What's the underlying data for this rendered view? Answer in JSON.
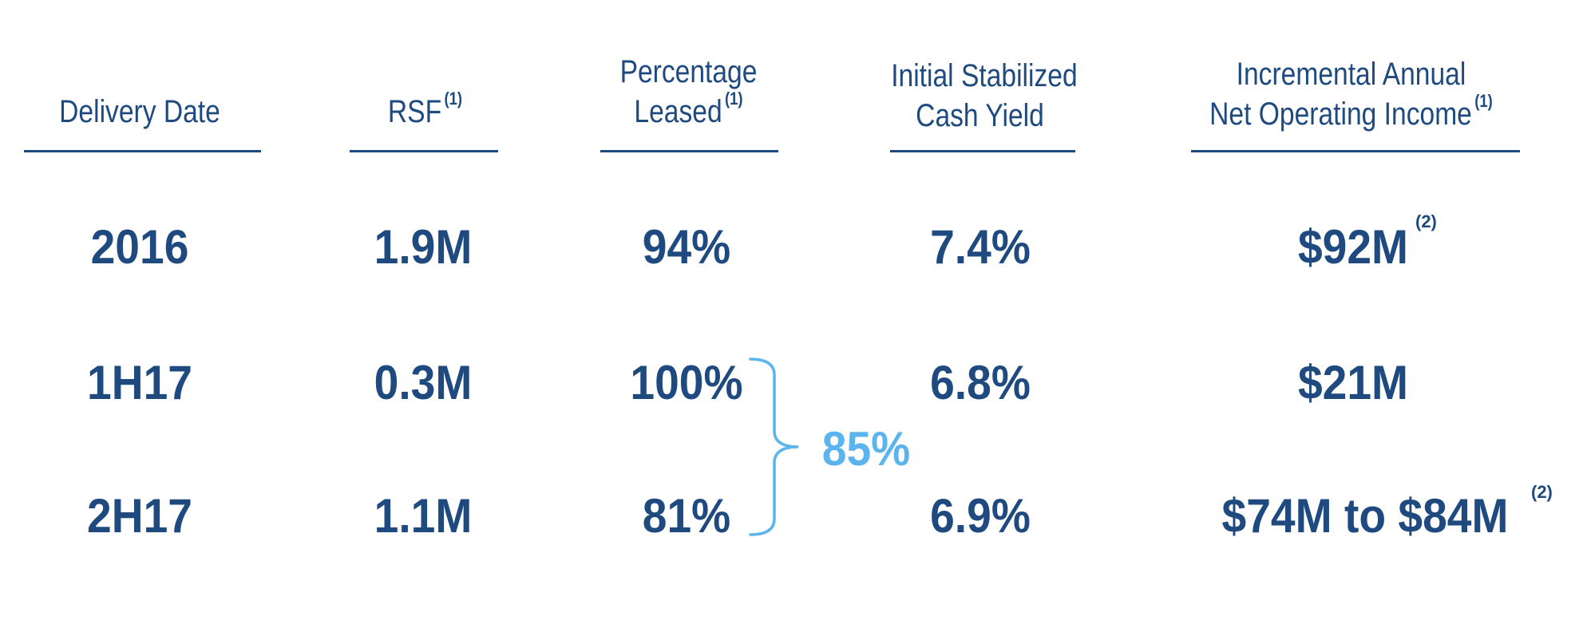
{
  "table": {
    "headers": {
      "delivery_date": {
        "line1": "Delivery Date"
      },
      "rsf": {
        "line1": "RSF",
        "sup": "(1)"
      },
      "pct_leased": {
        "line1": "Percentage",
        "line2": "Leased",
        "sup": "(1)"
      },
      "cash_yield": {
        "line1": "Initial Stabilized",
        "line2": "Cash Yield"
      },
      "noi": {
        "line1": "Incremental Annual",
        "line2": "Net Operating Income",
        "sup": "(1)"
      }
    },
    "rows": [
      {
        "date": "2016",
        "rsf": "1.9M",
        "leased": "94%",
        "yield": "7.4%",
        "noi": "$92M",
        "noi_sup": "(2)"
      },
      {
        "date": "1H17",
        "rsf": "0.3M",
        "leased": "100%",
        "yield": "6.8%",
        "noi": "$21M",
        "noi_sup": ""
      },
      {
        "date": "2H17",
        "rsf": "1.1M",
        "leased": "81%",
        "yield": "6.9%",
        "noi": "$74M to $84M",
        "noi_sup": "(2)"
      }
    ],
    "combined_leased": "85%"
  },
  "colors": {
    "primary": "#1e4a7f",
    "accent": "#5bb4ee"
  }
}
